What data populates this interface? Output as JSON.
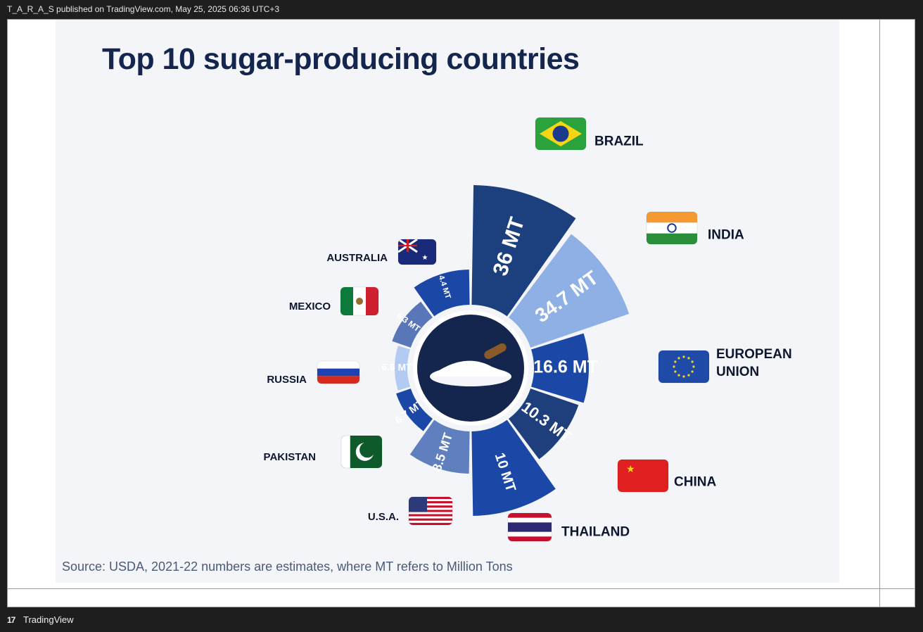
{
  "header": {
    "published_text": "T_A_R_A_S published on TradingView.com, May 25, 2025 06:36 UTC+3"
  },
  "footer": {
    "logo_glyph": "17",
    "brand": "TradingView"
  },
  "chart_data": {
    "type": "pie",
    "title": "Top 10 sugar-producing countries",
    "source_note": "Source: USDA, 2021-22 numbers are estimates, where MT refers to Million Tons",
    "unit": "MT",
    "categories": [
      "BRAZIL",
      "INDIA",
      "EUROPEAN UNION",
      "CHINA",
      "THAILAND",
      "U.S.A.",
      "PAKISTAN",
      "RUSSIA",
      "MEXICO",
      "AUSTRALIA"
    ],
    "values": [
      36,
      34.7,
      16.6,
      10.3,
      10,
      8.5,
      6.7,
      6.6,
      6.3,
      4.4
    ],
    "data_labels": [
      "36 MT",
      "34.7 MT",
      "16.6 MT",
      "10.3 MT",
      "10 MT",
      "8.5 MT",
      "6.7 MT",
      "6.6 MT",
      "6.3 MT",
      "4.4 MT"
    ],
    "country_labels": [
      "BRAZIL",
      "INDIA",
      "EUROPEAN\nUNION",
      "CHINA",
      "THAILAND",
      "U.S.A.",
      "PAKISTAN",
      "RUSSIA",
      "MEXICO",
      "AUSTRALIA"
    ],
    "colors": [
      "#1c3f7d",
      "#8fb0e5",
      "#1b48a6",
      "#1f3e7c",
      "#1b48a6",
      "#5f7fbf",
      "#1b48a6",
      "#b3cbf2",
      "#5876b8",
      "#1b48a6"
    ],
    "flags": [
      "brazil-flag",
      "india-flag",
      "eu-flag",
      "china-flag",
      "thailand-flag",
      "usa-flag",
      "pakistan-flag",
      "russia-flag",
      "mexico-flag",
      "australia-flag"
    ],
    "center_image": "sugar-pile-with-scoop"
  }
}
